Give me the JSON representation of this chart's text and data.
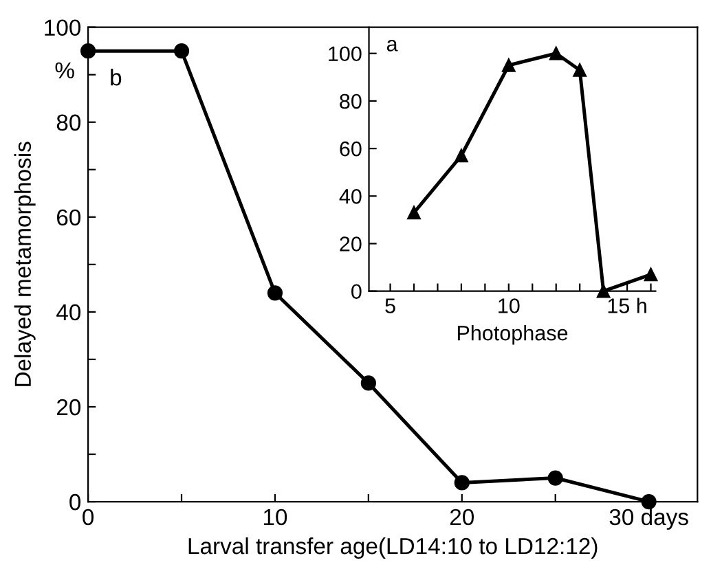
{
  "chart_data": [
    {
      "type": "line",
      "xlabel": "Larval transfer age(LD14:10 to LD12:12)",
      "ylabel": "Delayed metamorphosis",
      "annotations": [
        "%",
        "b"
      ],
      "x": [
        0,
        5,
        10,
        15,
        20,
        25,
        30
      ],
      "series": [
        {
          "color": "#000000",
          "values": [
            95,
            95,
            44,
            25,
            4,
            5,
            0
          ]
        }
      ],
      "xlim": [
        0,
        32.6
      ],
      "ylim": [
        0,
        100
      ],
      "xticks": [
        0,
        {
          "value": 5,
          "label": null
        },
        10,
        {
          "value": 15,
          "label": null
        },
        20,
        {
          "value": 25,
          "label": null
        },
        {
          "value": 30,
          "label": "30 days"
        }
      ],
      "yticks": [
        0,
        {
          "value": 10,
          "label": null
        },
        20,
        {
          "value": 30,
          "label": null
        },
        40,
        {
          "value": 50,
          "label": null
        },
        60,
        {
          "value": 70,
          "label": null
        },
        80,
        {
          "value": 90,
          "label": null
        },
        100
      ],
      "grid": false,
      "legend": false,
      "marker": "circle",
      "line_style": "solid"
    },
    {
      "type": "line",
      "xlabel": "Photophase",
      "annotations": [
        "a"
      ],
      "x": [
        6,
        8,
        10,
        12,
        13,
        14,
        16
      ],
      "series": [
        {
          "color": "#000000",
          "values": [
            33,
            57,
            95,
            100,
            93,
            0,
            7
          ]
        }
      ],
      "xlim": [
        4.1,
        16.2
      ],
      "ylim": [
        0,
        111
      ],
      "xticks": [
        5,
        {
          "value": 6,
          "label": null
        },
        {
          "value": 7,
          "label": null
        },
        {
          "value": 8,
          "label": null
        },
        {
          "value": 9,
          "label": null
        },
        10,
        {
          "value": 11,
          "label": null
        },
        {
          "value": 12,
          "label": null
        },
        {
          "value": 13,
          "label": null
        },
        {
          "value": 14,
          "label": null
        },
        {
          "value": 15,
          "label": "15 h"
        },
        {
          "value": 16,
          "label": null
        }
      ],
      "yticks": [
        0,
        20,
        40,
        60,
        80,
        100
      ],
      "grid": false,
      "legend": false,
      "marker": "triangle",
      "line_style": "solid"
    }
  ]
}
